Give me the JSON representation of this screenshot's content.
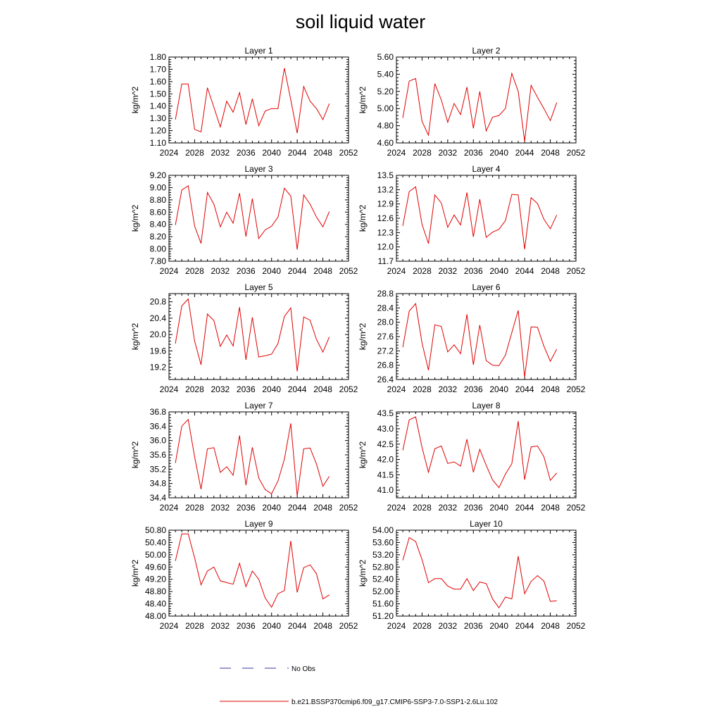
{
  "title": "soil liquid water",
  "legend": {
    "no_obs_label": "No Obs",
    "model_label": "b.e21.BSSP370cmip6.f09_g17.CMIP6-SSP3-7.0-SSP1-2.6Lu.102",
    "no_obs_color": "#3a3aa0",
    "model_color": "#e00000"
  },
  "chart_data": [
    {
      "type": "line",
      "title": "Layer 1",
      "ylabel": "kg/m^2",
      "xlim": [
        2024,
        2052
      ],
      "xticks": [
        2024,
        2028,
        2032,
        2036,
        2040,
        2044,
        2048,
        2052
      ],
      "ylim": [
        1.1,
        1.8
      ],
      "yticks": [
        "1.10",
        "1.20",
        "1.30",
        "1.40",
        "1.50",
        "1.60",
        "1.70",
        "1.80"
      ],
      "x": [
        2025,
        2026,
        2027,
        2028,
        2029,
        2030,
        2031,
        2032,
        2033,
        2034,
        2035,
        2036,
        2037,
        2038,
        2039,
        2040,
        2041,
        2042,
        2043,
        2044,
        2045,
        2046,
        2047,
        2048,
        2049
      ],
      "series": [
        {
          "values": [
            1.29,
            1.58,
            1.58,
            1.21,
            1.19,
            1.55,
            1.39,
            1.23,
            1.44,
            1.35,
            1.51,
            1.25,
            1.46,
            1.24,
            1.36,
            1.38,
            1.38,
            1.71,
            1.45,
            1.18,
            1.56,
            1.44,
            1.38,
            1.29,
            1.42
          ]
        }
      ]
    },
    {
      "type": "line",
      "title": "Layer 2",
      "ylabel": "kg/m^2",
      "xlim": [
        2024,
        2052
      ],
      "xticks": [
        2024,
        2028,
        2032,
        2036,
        2040,
        2044,
        2048,
        2052
      ],
      "ylim": [
        4.6,
        5.6
      ],
      "yticks": [
        "4.60",
        "4.80",
        "5.00",
        "5.20",
        "5.40",
        "5.60"
      ],
      "x": [
        2025,
        2026,
        2027,
        2028,
        2029,
        2030,
        2031,
        2032,
        2033,
        2034,
        2035,
        2036,
        2037,
        2038,
        2039,
        2040,
        2041,
        2042,
        2043,
        2044,
        2045,
        2046,
        2047,
        2048,
        2049
      ],
      "series": [
        {
          "values": [
            4.89,
            5.32,
            5.35,
            4.85,
            4.69,
            5.29,
            5.1,
            4.84,
            5.06,
            4.93,
            5.25,
            4.77,
            5.2,
            4.74,
            4.9,
            4.92,
            5.0,
            5.41,
            5.2,
            4.62,
            5.27,
            5.13,
            5.0,
            4.86,
            5.07
          ]
        }
      ]
    },
    {
      "type": "line",
      "title": "Layer 3",
      "ylabel": "kg/m^2",
      "xlim": [
        2024,
        2052
      ],
      "xticks": [
        2024,
        2028,
        2032,
        2036,
        2040,
        2044,
        2048,
        2052
      ],
      "ylim": [
        7.8,
        9.2
      ],
      "yticks": [
        "7.80",
        "8.00",
        "8.20",
        "8.40",
        "8.60",
        "8.80",
        "9.00",
        "9.20"
      ],
      "x": [
        2025,
        2026,
        2027,
        2028,
        2029,
        2030,
        2031,
        2032,
        2033,
        2034,
        2035,
        2036,
        2037,
        2038,
        2039,
        2040,
        2041,
        2042,
        2043,
        2044,
        2045,
        2046,
        2047,
        2048,
        2049
      ],
      "series": [
        {
          "values": [
            8.39,
            8.96,
            9.03,
            8.37,
            8.09,
            8.92,
            8.73,
            8.36,
            8.6,
            8.42,
            8.91,
            8.2,
            8.82,
            8.17,
            8.31,
            8.37,
            8.52,
            8.99,
            8.86,
            7.99,
            8.88,
            8.73,
            8.52,
            8.36,
            8.61
          ]
        }
      ]
    },
    {
      "type": "line",
      "title": "Layer 4",
      "ylabel": "kg/m^2",
      "xlim": [
        2024,
        2052
      ],
      "xticks": [
        2024,
        2028,
        2032,
        2036,
        2040,
        2044,
        2048,
        2052
      ],
      "ylim": [
        11.7,
        13.5
      ],
      "yticks": [
        "11.7",
        "12.0",
        "12.3",
        "12.6",
        "12.9",
        "13.2",
        "13.5"
      ],
      "x": [
        2025,
        2026,
        2027,
        2028,
        2029,
        2030,
        2031,
        2032,
        2033,
        2034,
        2035,
        2036,
        2037,
        2038,
        2039,
        2040,
        2041,
        2042,
        2043,
        2044,
        2045,
        2046,
        2047,
        2048,
        2049
      ],
      "series": [
        {
          "values": [
            12.44,
            13.16,
            13.26,
            12.47,
            12.07,
            13.09,
            12.92,
            12.41,
            12.67,
            12.46,
            13.14,
            12.21,
            13.0,
            12.2,
            12.31,
            12.37,
            12.55,
            13.1,
            13.09,
            11.95,
            13.03,
            12.91,
            12.58,
            12.38,
            12.67
          ]
        }
      ]
    },
    {
      "type": "line",
      "title": "Layer 5",
      "ylabel": "kg/m^2",
      "xlim": [
        2024,
        2052
      ],
      "xticks": [
        2024,
        2028,
        2032,
        2036,
        2040,
        2044,
        2048,
        2052
      ],
      "ylim": [
        18.9,
        21.0
      ],
      "yticks": [
        "19.2",
        "19.6",
        "20.0",
        "20.4",
        "20.8"
      ],
      "x": [
        2025,
        2026,
        2027,
        2028,
        2029,
        2030,
        2031,
        2032,
        2033,
        2034,
        2035,
        2036,
        2037,
        2038,
        2039,
        2040,
        2041,
        2042,
        2043,
        2044,
        2045,
        2046,
        2047,
        2048,
        2049
      ],
      "series": [
        {
          "values": [
            19.78,
            20.7,
            20.87,
            19.84,
            19.26,
            20.5,
            20.34,
            19.71,
            19.99,
            19.72,
            20.67,
            19.38,
            20.42,
            19.45,
            19.48,
            19.52,
            19.78,
            20.44,
            20.65,
            19.1,
            20.43,
            20.35,
            19.88,
            19.57,
            19.94
          ]
        }
      ]
    },
    {
      "type": "line",
      "title": "Layer 6",
      "ylabel": "kg/m^2",
      "xlim": [
        2024,
        2052
      ],
      "xticks": [
        2024,
        2028,
        2032,
        2036,
        2040,
        2044,
        2048,
        2052
      ],
      "ylim": [
        26.4,
        28.8
      ],
      "yticks": [
        "26.4",
        "26.8",
        "27.2",
        "27.6",
        "28.0",
        "28.4",
        "28.8"
      ],
      "x": [
        2025,
        2026,
        2027,
        2028,
        2029,
        2030,
        2031,
        2032,
        2033,
        2034,
        2035,
        2036,
        2037,
        2038,
        2039,
        2040,
        2041,
        2042,
        2043,
        2044,
        2045,
        2046,
        2047,
        2048,
        2049
      ],
      "series": [
        {
          "values": [
            27.3,
            28.31,
            28.52,
            27.42,
            26.66,
            27.93,
            27.88,
            27.17,
            27.37,
            27.12,
            28.22,
            26.81,
            27.92,
            26.93,
            26.8,
            26.79,
            27.08,
            27.71,
            28.33,
            26.47,
            27.87,
            27.86,
            27.33,
            26.91,
            27.25
          ]
        }
      ]
    },
    {
      "type": "line",
      "title": "Layer 7",
      "ylabel": "kg/m^2",
      "xlim": [
        2024,
        2052
      ],
      "xticks": [
        2024,
        2028,
        2032,
        2036,
        2040,
        2044,
        2048,
        2052
      ],
      "ylim": [
        34.4,
        36.8
      ],
      "yticks": [
        "34.4",
        "34.8",
        "35.2",
        "35.6",
        "36.0",
        "36.4",
        "36.8"
      ],
      "x": [
        2025,
        2026,
        2027,
        2028,
        2029,
        2030,
        2031,
        2032,
        2033,
        2034,
        2035,
        2036,
        2037,
        2038,
        2039,
        2040,
        2041,
        2042,
        2043,
        2044,
        2045,
        2046,
        2047,
        2048,
        2049
      ],
      "series": [
        {
          "values": [
            35.37,
            36.4,
            36.59,
            35.54,
            34.64,
            35.77,
            35.8,
            35.11,
            35.27,
            35.03,
            36.14,
            34.75,
            35.81,
            34.95,
            34.63,
            34.51,
            34.87,
            35.48,
            36.48,
            34.45,
            35.77,
            35.79,
            35.34,
            34.72,
            35.0
          ]
        }
      ]
    },
    {
      "type": "line",
      "title": "Layer 8",
      "ylabel": "kg/m^2",
      "xlim": [
        2024,
        2052
      ],
      "xticks": [
        2024,
        2028,
        2032,
        2036,
        2040,
        2044,
        2048,
        2052
      ],
      "ylim": [
        40.75,
        43.55
      ],
      "yticks": [
        "41.0",
        "41.5",
        "42.0",
        "42.5",
        "43.0",
        "43.5"
      ],
      "x": [
        2025,
        2026,
        2027,
        2028,
        2029,
        2030,
        2031,
        2032,
        2033,
        2034,
        2035,
        2036,
        2037,
        2038,
        2039,
        2040,
        2041,
        2042,
        2043,
        2044,
        2045,
        2046,
        2047,
        2048,
        2049
      ],
      "series": [
        {
          "values": [
            42.3,
            43.29,
            43.39,
            42.39,
            41.58,
            42.35,
            42.44,
            41.87,
            41.92,
            41.78,
            42.66,
            41.58,
            42.33,
            41.81,
            41.33,
            41.08,
            41.52,
            41.86,
            43.25,
            41.34,
            42.41,
            42.44,
            42.09,
            41.32,
            41.56
          ]
        }
      ]
    },
    {
      "type": "line",
      "title": "Layer 9",
      "ylabel": "kg/m^2",
      "xlim": [
        2024,
        2052
      ],
      "xticks": [
        2024,
        2028,
        2032,
        2036,
        2040,
        2044,
        2048,
        2052
      ],
      "ylim": [
        48.0,
        50.8
      ],
      "yticks": [
        "48.00",
        "48.40",
        "48.80",
        "49.20",
        "49.60",
        "50.00",
        "50.40",
        "50.80"
      ],
      "x": [
        2025,
        2026,
        2027,
        2028,
        2029,
        2030,
        2031,
        2032,
        2033,
        2034,
        2035,
        2036,
        2037,
        2038,
        2039,
        2040,
        2041,
        2042,
        2043,
        2044,
        2045,
        2046,
        2047,
        2048,
        2049
      ],
      "series": [
        {
          "values": [
            49.8,
            50.68,
            50.68,
            49.9,
            49.02,
            49.47,
            49.6,
            49.15,
            49.09,
            49.04,
            49.72,
            48.96,
            49.47,
            49.2,
            48.59,
            48.29,
            48.73,
            48.83,
            50.45,
            48.77,
            49.58,
            49.67,
            49.38,
            48.56,
            48.69
          ]
        }
      ]
    },
    {
      "type": "line",
      "title": "Layer 10",
      "ylabel": "kg/m^2",
      "xlim": [
        2024,
        2052
      ],
      "xticks": [
        2024,
        2028,
        2032,
        2036,
        2040,
        2044,
        2048,
        2052
      ],
      "ylim": [
        51.2,
        54.0
      ],
      "yticks": [
        "51.20",
        "51.60",
        "52.00",
        "52.40",
        "52.80",
        "53.20",
        "53.60",
        "54.00"
      ],
      "x": [
        2025,
        2026,
        2027,
        2028,
        2029,
        2030,
        2031,
        2032,
        2033,
        2034,
        2035,
        2036,
        2037,
        2038,
        2039,
        2040,
        2041,
        2042,
        2043,
        2044,
        2045,
        2046,
        2047,
        2048,
        2049
      ],
      "series": [
        {
          "values": [
            53.02,
            53.76,
            53.63,
            53.04,
            52.29,
            52.42,
            52.42,
            52.18,
            52.08,
            52.08,
            52.42,
            52.03,
            52.31,
            52.26,
            51.76,
            51.47,
            51.82,
            51.76,
            53.15,
            51.93,
            52.33,
            52.52,
            52.34,
            51.68,
            51.7
          ]
        }
      ]
    }
  ]
}
